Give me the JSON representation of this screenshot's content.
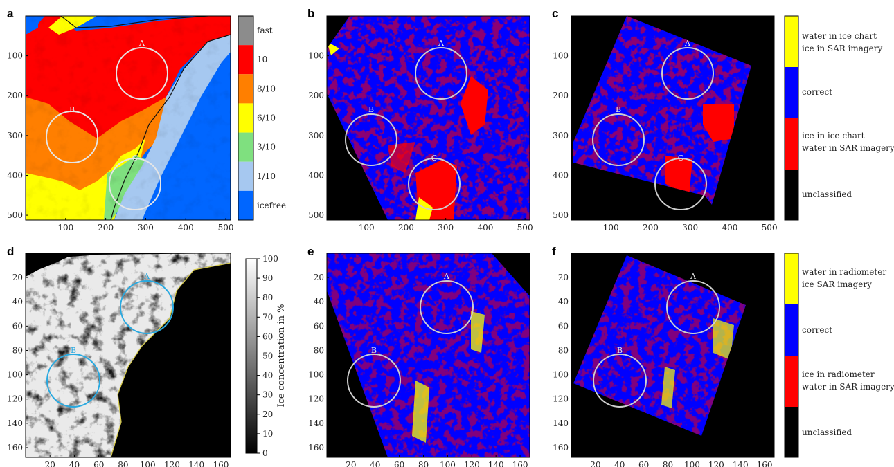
{
  "panel_labels": [
    "a",
    "b",
    "c",
    "d",
    "e",
    "f"
  ],
  "ticks_512": [
    "100",
    "200",
    "300",
    "400",
    "500"
  ],
  "ticks_168": [
    "20",
    "40",
    "60",
    "80",
    "100",
    "120",
    "140",
    "160"
  ],
  "circle_labels": {
    "A": "A",
    "B": "B",
    "C": "C"
  },
  "legend_ice_chart": [
    "fast",
    "10",
    "8/10",
    "6/10",
    "3/10",
    "1/10",
    "icefree"
  ],
  "legend_ice_chart_colors": [
    "#8c8c8c",
    "#ff0000",
    "#ff7f00",
    "#ffff00",
    "#7fe07f",
    "#a6c8f0",
    "#0066ff"
  ],
  "legend_compare_chart": [
    "water in ice chart",
    "ice in SAR imagery",
    "correct",
    "ice in ice chart",
    "water in SAR imagery",
    "unclassified"
  ],
  "legend_compare_radiometer": [
    "water in radiometer",
    "ice SAR imagery",
    "correct",
    "ice in radiometer",
    "water in SAR imagery",
    "unclassified"
  ],
  "colorbar_ticks": [
    "100",
    "90",
    "80",
    "70",
    "60",
    "50",
    "40",
    "30",
    "20",
    "10",
    "0"
  ],
  "colorbar_label": "Ice concentration in %",
  "colors": {
    "correct": "#0000ff",
    "ice_wrong": "#ff0000",
    "water_wrong": "#ffff00",
    "unclassified": "#000000",
    "circle": "#cfcfcf",
    "circle_d": "#29a9e0"
  }
}
